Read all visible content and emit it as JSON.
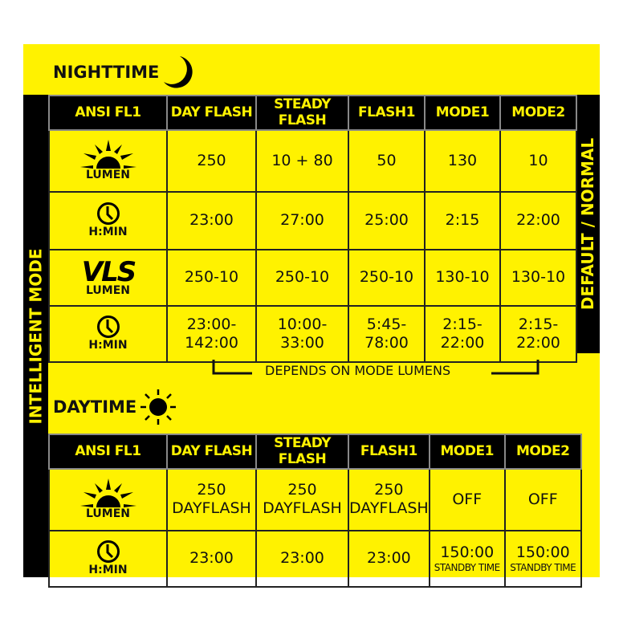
{
  "colors": {
    "yellow": "#fff200",
    "black": "#000000"
  },
  "left_label": "INTELLIGENT MODE",
  "right_label": "DEFAULT / NORMAL",
  "nighttime": {
    "title": "NIGHTTIME",
    "icon": "moon-icon",
    "headers": [
      "ANSI FL1",
      "DAY FLASH",
      "STEADY FLASH",
      "FLASH1",
      "MODE1",
      "MODE2"
    ],
    "rows": [
      {
        "icon": "sun-rays-icon",
        "label": "LUMEN",
        "values": [
          "250",
          "10 + 80",
          "50",
          "130",
          "10"
        ]
      },
      {
        "icon": "clock-icon",
        "label": "H:MIN",
        "values": [
          "23:00",
          "27:00",
          "25:00",
          "2:15",
          "22:00"
        ]
      },
      {
        "icon": "vls-logo",
        "logo_text": "VLS",
        "label": "LUMEN",
        "values": [
          "250-10",
          "250-10",
          "250-10",
          "130-10",
          "130-10"
        ]
      },
      {
        "icon": "clock-icon",
        "label": "H:MIN",
        "values": [
          "23:00-\n142:00",
          "10:00-\n33:00",
          "5:45-\n78:00",
          "2:15-\n22:00",
          "2:15-\n22:00"
        ]
      }
    ],
    "note": "DEPENDS ON MODE LUMENS"
  },
  "daytime": {
    "title": "DAYTIME",
    "icon": "sun-icon",
    "headers": [
      "ANSI FL1",
      "DAY FLASH",
      "STEADY FLASH",
      "FLASH1",
      "MODE1",
      "MODE2"
    ],
    "rows": [
      {
        "icon": "sun-rays-icon",
        "label": "LUMEN",
        "values": [
          [
            "250",
            "DAYFLASH"
          ],
          [
            "250",
            "DAYFLASH"
          ],
          [
            "250",
            "DAYFLASH"
          ],
          [
            "OFF",
            ""
          ],
          [
            "OFF",
            ""
          ]
        ]
      },
      {
        "icon": "clock-icon",
        "label": "H:MIN",
        "values": [
          [
            "23:00",
            ""
          ],
          [
            "23:00",
            ""
          ],
          [
            "23:00",
            ""
          ],
          [
            "150:00",
            "STANDBY TIME"
          ],
          [
            "150:00",
            "STANDBY TIME"
          ]
        ]
      }
    ]
  }
}
